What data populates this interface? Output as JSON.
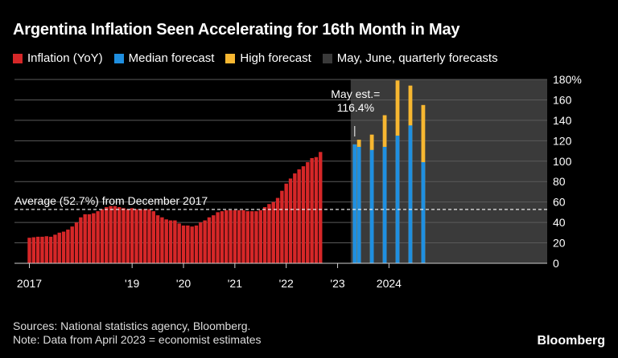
{
  "title": "Argentina Inflation Seen Accelerating for 16th Month in May",
  "legend": [
    {
      "label": "Inflation (YoY)",
      "color": "#d62728"
    },
    {
      "label": "Median forecast",
      "color": "#1f8fe0"
    },
    {
      "label": "High forecast",
      "color": "#f7b731"
    },
    {
      "label": "May, June, quarterly forecasts",
      "color": "#3a3a3a"
    }
  ],
  "footer": {
    "line1": "Sources: National statistics agency, Bloomberg.",
    "line2": "Note: Data from April 2023 = economist estimates"
  },
  "brand": "Bloomberg",
  "chart_data": {
    "type": "bar",
    "ylim": [
      0,
      180
    ],
    "y_ticks": [
      0,
      20,
      40,
      60,
      80,
      100,
      120,
      140,
      160,
      180
    ],
    "y_tick_labels": [
      "0",
      "20",
      "40",
      "60",
      "80",
      "100",
      "120",
      "140",
      "160",
      "180%"
    ],
    "x_tick_labels": [
      {
        "label": "2017",
        "date": "2017-01"
      },
      {
        "label": "'19",
        "date": "2019-01"
      },
      {
        "label": "'20",
        "date": "2020-01"
      },
      {
        "label": "'21",
        "date": "2021-01"
      },
      {
        "label": "'22",
        "date": "2022-01"
      },
      {
        "label": "'23",
        "date": "2023-01"
      },
      {
        "label": "2024",
        "date": "2024-01"
      }
    ],
    "average": {
      "value": 52.7,
      "label": "Average (52.7%) from December 2017"
    },
    "annotation": {
      "label": "May est.=\n116.4%",
      "value": 116.4
    },
    "shade_start": "2023-05",
    "series": [
      {
        "name": "Inflation (YoY)",
        "color": "#d62728",
        "start": "2017-01",
        "values": [
          25,
          25.5,
          26,
          26,
          26.5,
          26,
          28,
          30,
          31,
          33,
          36,
          40,
          45,
          48,
          48,
          49,
          51,
          53,
          55,
          56,
          56,
          55,
          54,
          53,
          54,
          53,
          53,
          53,
          53,
          51,
          47,
          45,
          43,
          42,
          42,
          39,
          37,
          37,
          36,
          37,
          40,
          42,
          45,
          47,
          50,
          51,
          52,
          52,
          52,
          52,
          52,
          51,
          51,
          51,
          52,
          55,
          58,
          60,
          64,
          71,
          78,
          83,
          88,
          92,
          95,
          99,
          103,
          104,
          109
        ]
      },
      {
        "name": "Median forecast",
        "color": "#1f8fe0",
        "values": [
          {
            "date": "2023-05",
            "value": 116.4
          },
          {
            "date": "2023-06",
            "value": 114
          },
          {
            "date": "2023-09",
            "value": 111
          },
          {
            "date": "2023-12",
            "value": 114
          },
          {
            "date": "2024-03",
            "value": 125
          },
          {
            "date": "2024-06",
            "value": 135
          },
          {
            "date": "2024-09",
            "value": 99
          }
        ]
      },
      {
        "name": "High forecast",
        "color": "#f7b731",
        "values": [
          {
            "date": "2023-05",
            "value": 116.4
          },
          {
            "date": "2023-06",
            "value": 121
          },
          {
            "date": "2023-09",
            "value": 126
          },
          {
            "date": "2023-12",
            "value": 145
          },
          {
            "date": "2024-03",
            "value": 179
          },
          {
            "date": "2024-06",
            "value": 174
          },
          {
            "date": "2024-09",
            "value": 155
          }
        ]
      }
    ]
  }
}
